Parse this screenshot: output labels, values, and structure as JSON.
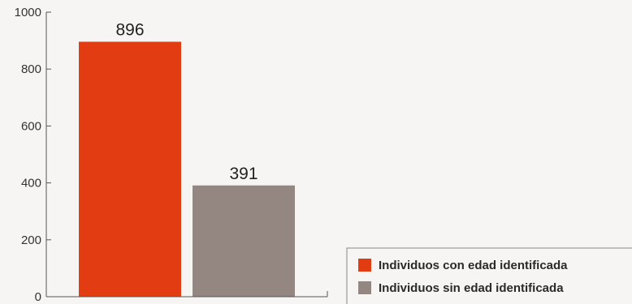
{
  "chart_data": {
    "type": "bar",
    "categories": [
      "Individuos con edad identificada",
      "Individuos sin edad identificada"
    ],
    "values": [
      896,
      391
    ],
    "data_labels": [
      "896",
      "391"
    ],
    "colors": [
      "#e23d12",
      "#948680"
    ],
    "ylim": [
      0,
      1000
    ],
    "yticks": [
      0,
      200,
      400,
      600,
      800,
      1000
    ],
    "ytick_labels": [
      "0",
      "200",
      "400",
      "600",
      "800",
      "1000"
    ],
    "grid": false,
    "legend": {
      "position": "bottom-right",
      "entries": [
        "Individuos con edad identificada",
        "Individuos sin edad identificada"
      ]
    }
  }
}
